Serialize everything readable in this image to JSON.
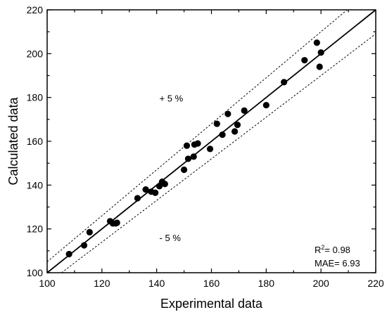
{
  "chart_data": {
    "type": "scatter",
    "title": "",
    "xlabel": "Experimental data",
    "ylabel": "Calculated data",
    "xlim": [
      100,
      220
    ],
    "ylim": [
      100,
      220
    ],
    "xticks": [
      100,
      120,
      140,
      160,
      180,
      200,
      220
    ],
    "yticks": [
      100,
      120,
      140,
      160,
      180,
      200,
      220
    ],
    "grid": false,
    "points": [
      {
        "x": 108,
        "y": 108.5
      },
      {
        "x": 113.5,
        "y": 112.5
      },
      {
        "x": 115.5,
        "y": 118.5
      },
      {
        "x": 123,
        "y": 123.5
      },
      {
        "x": 124,
        "y": 122.5
      },
      {
        "x": 125,
        "y": 122.5
      },
      {
        "x": 125.5,
        "y": 122.8
      },
      {
        "x": 133,
        "y": 134
      },
      {
        "x": 136,
        "y": 138
      },
      {
        "x": 138,
        "y": 137
      },
      {
        "x": 139.5,
        "y": 136.5
      },
      {
        "x": 141,
        "y": 139.5
      },
      {
        "x": 142,
        "y": 141.5
      },
      {
        "x": 143,
        "y": 140.5
      },
      {
        "x": 150,
        "y": 147
      },
      {
        "x": 151,
        "y": 158
      },
      {
        "x": 151.5,
        "y": 152
      },
      {
        "x": 153.5,
        "y": 153
      },
      {
        "x": 153.8,
        "y": 158.5
      },
      {
        "x": 155,
        "y": 159
      },
      {
        "x": 159.5,
        "y": 156.5
      },
      {
        "x": 162,
        "y": 168
      },
      {
        "x": 164,
        "y": 163
      },
      {
        "x": 166,
        "y": 172.5
      },
      {
        "x": 168.5,
        "y": 164.5
      },
      {
        "x": 169.5,
        "y": 167.5
      },
      {
        "x": 172,
        "y": 174
      },
      {
        "x": 180,
        "y": 176.5
      },
      {
        "x": 186.5,
        "y": 187
      },
      {
        "x": 194,
        "y": 197
      },
      {
        "x": 198.5,
        "y": 205
      },
      {
        "x": 199.5,
        "y": 194
      },
      {
        "x": 200,
        "y": 200.5
      }
    ],
    "reference_lines": [
      {
        "name": "y = x",
        "style": "solid",
        "factor": 1.0
      },
      {
        "name": "+5%",
        "style": "dotted",
        "factor": 1.05
      },
      {
        "name": "-5%",
        "style": "dotted",
        "factor": 0.95
      }
    ],
    "annotations": {
      "plus": "+ 5 %",
      "minus": "- 5 %"
    },
    "stats": {
      "r2_prefix": "R",
      "r2_sup": "2",
      "r2_value": "= 0.98",
      "mae": "MAE= 6.93"
    }
  }
}
